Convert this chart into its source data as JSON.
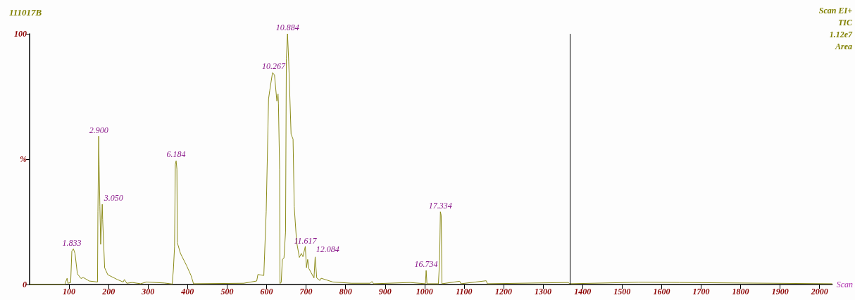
{
  "chart_data": {
    "type": "line",
    "title": "111017B",
    "xlabel": "Scan",
    "x": [
      0,
      89,
      95,
      97,
      104,
      107,
      111,
      115,
      121,
      130,
      136,
      151,
      172,
      173,
      175,
      176,
      178,
      180,
      184,
      185,
      190,
      198,
      222,
      237,
      240,
      246,
      260,
      281,
      296,
      341,
      361,
      364,
      367,
      369,
      371,
      373,
      374,
      382,
      397,
      409,
      415,
      542,
      575,
      578,
      593,
      599,
      605,
      608,
      615,
      620,
      626,
      629,
      630,
      633,
      634,
      637,
      640,
      644,
      648,
      650,
      653,
      656,
      662,
      667,
      670,
      676,
      683,
      688,
      692,
      698,
      701,
      704,
      707,
      720,
      723,
      727,
      735,
      738,
      768,
      815,
      862,
      867,
      871,
      963,
      1002,
      1004,
      1006,
      1035,
      1038,
      1040,
      1042,
      1044,
      1089,
      1092,
      1156,
      1159,
      1364,
      1367,
      1542,
      1645,
      2032
    ],
    "series": [
      {
        "color": "#8c8c1a",
        "values": [
          0,
          0,
          2.5,
          0.5,
          0.8,
          13.3,
          14.2,
          12.4,
          4.3,
          2.4,
          2.8,
          1.4,
          1,
          29,
          59.2,
          48,
          31,
          16,
          32,
          26,
          6.7,
          3.9,
          2,
          1,
          2,
          0.5,
          0.8,
          0.3,
          1,
          0.6,
          0.2,
          5.8,
          15,
          48,
          49.3,
          46,
          16.7,
          12.4,
          7.7,
          3.5,
          0.3,
          0.5,
          1.4,
          4,
          3.6,
          29,
          74,
          77.4,
          84.5,
          83.6,
          73.2,
          76,
          72,
          46,
          0.4,
          0.8,
          10,
          10.5,
          21,
          90,
          100,
          89,
          60,
          58,
          31,
          17,
          10.8,
          12.4,
          11.1,
          15.2,
          6.7,
          10,
          6.4,
          2.6,
          11,
          2.6,
          1.6,
          2.5,
          1,
          0.5,
          0.5,
          1.2,
          0.3,
          0.8,
          0.3,
          5.6,
          0.3,
          0.3,
          9.6,
          29,
          27.6,
          0.3,
          1.3,
          0.3,
          1.5,
          0.3,
          0.8,
          0.3,
          0.9,
          0.8,
          0.3
        ]
      }
    ],
    "xlim": [
      0,
      2032
    ],
    "xticks": [
      100,
      200,
      300,
      400,
      500,
      600,
      700,
      800,
      900,
      1000,
      1100,
      1200,
      1300,
      1400,
      1500,
      1600,
      1700,
      1800,
      1900,
      2000
    ],
    "ylim": [
      0,
      100
    ],
    "yticks": [
      0,
      {
        "value": 50,
        "label": "%"
      },
      100
    ],
    "grid": false,
    "marker": "none",
    "line_style": "solid",
    "ref_lines": [
      {
        "axis": "x",
        "value": 1368,
        "color": "#000000"
      }
    ],
    "annotations": [
      {
        "text": "1.833",
        "x": 107,
        "y": 14
      },
      {
        "text": "2.900",
        "x": 175,
        "y": 59
      },
      {
        "text": "3.050",
        "x": 184,
        "y": 32
      },
      {
        "text": "6.184",
        "x": 371,
        "y": 49.5
      },
      {
        "text": "10.267",
        "x": 618,
        "y": 84.5
      },
      {
        "text": "10.884",
        "x": 653,
        "y": 100
      },
      {
        "text": "11.617",
        "x": 698,
        "y": 15
      },
      {
        "text": "12.084",
        "x": 726,
        "y": 11.5
      },
      {
        "text": "16.734",
        "x": 1004,
        "y": 5.6
      },
      {
        "text": "17.334",
        "x": 1040,
        "y": 29
      },
      "Scan EI+",
      "TIC",
      "1.12e7",
      "Area"
    ]
  }
}
